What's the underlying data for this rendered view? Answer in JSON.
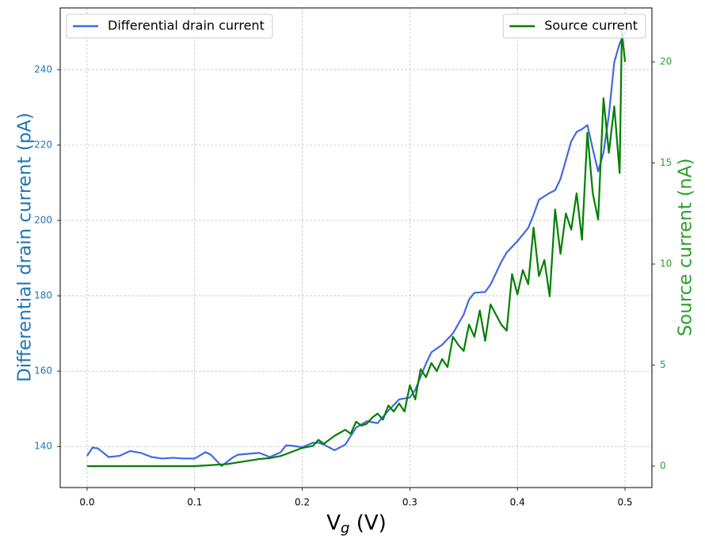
{
  "chart_data": {
    "type": "line",
    "xlabel": {
      "main": "V",
      "sub": "g",
      "rest": " (V)"
    },
    "ylabel": "Differential drain current (pA)",
    "y2label": "Source current (nA)",
    "xlim": [
      -0.025,
      0.525
    ],
    "ylim": [
      129.1,
      256.4
    ],
    "y2lim": [
      -1.06,
      22.67
    ],
    "xticks": [
      {
        "value": 0,
        "label": "0.0"
      },
      0.1,
      0.2,
      0.3,
      0.4,
      0.5
    ],
    "yticks": [
      140,
      160,
      180,
      200,
      220,
      240
    ],
    "y2ticks": [
      0,
      5,
      10,
      15,
      20
    ],
    "grid": true,
    "series": [
      {
        "name": "Differential drain current",
        "color": "#4169e1",
        "axis": "y",
        "legend": "upper left",
        "x": [
          0,
          0.005,
          0.01,
          0.02,
          0.03,
          0.04,
          0.05,
          0.06,
          0.07,
          0.08,
          0.09,
          0.1,
          0.11,
          0.115,
          0.125,
          0.135,
          0.14,
          0.16,
          0.17,
          0.18,
          0.185,
          0.19,
          0.2,
          0.21,
          0.215,
          0.22,
          0.23,
          0.24,
          0.25,
          0.26,
          0.27,
          0.28,
          0.29,
          0.3,
          0.305,
          0.31,
          0.315,
          0.32,
          0.33,
          0.34,
          0.35,
          0.355,
          0.36,
          0.37,
          0.375,
          0.385,
          0.39,
          0.4,
          0.41,
          0.415,
          0.42,
          0.43,
          0.435,
          0.44,
          0.445,
          0.45,
          0.455,
          0.46,
          0.465,
          0.47,
          0.475,
          0.48,
          0.485,
          0.49,
          0.495,
          0.5
        ],
        "values": [
          137.5,
          139.7,
          139.5,
          137.2,
          137.5,
          138.8,
          138.3,
          137.2,
          136.8,
          137,
          136.8,
          136.8,
          138.5,
          137.8,
          134.8,
          137,
          137.8,
          138.3,
          137.2,
          138.5,
          140.3,
          140.2,
          139.8,
          141,
          141,
          140.5,
          139,
          140.5,
          145,
          146.7,
          146.2,
          149.5,
          152.5,
          153,
          155,
          158.5,
          162,
          165,
          167,
          170,
          175,
          179,
          180.8,
          181,
          183,
          189,
          191.5,
          194.5,
          198,
          201.5,
          205.5,
          207.3,
          208,
          211,
          216,
          221,
          223.5,
          224.2,
          225.3,
          219,
          213,
          218,
          228,
          242,
          247,
          250
        ]
      },
      {
        "name": "Source current",
        "color": "#008000",
        "axis": "y2",
        "legend": "upper right",
        "x": [
          0,
          0.1,
          0.13,
          0.16,
          0.17,
          0.18,
          0.19,
          0.2,
          0.21,
          0.215,
          0.22,
          0.23,
          0.24,
          0.245,
          0.25,
          0.255,
          0.26,
          0.265,
          0.27,
          0.275,
          0.28,
          0.285,
          0.29,
          0.295,
          0.3,
          0.305,
          0.31,
          0.315,
          0.32,
          0.325,
          0.33,
          0.335,
          0.34,
          0.345,
          0.35,
          0.355,
          0.36,
          0.365,
          0.37,
          0.375,
          0.38,
          0.385,
          0.39,
          0.395,
          0.4,
          0.405,
          0.41,
          0.415,
          0.42,
          0.425,
          0.43,
          0.435,
          0.44,
          0.445,
          0.45,
          0.455,
          0.46,
          0.465,
          0.47,
          0.475,
          0.48,
          0.485,
          0.49,
          0.495,
          0.497,
          0.5
        ],
        "values": [
          0,
          0,
          0.1,
          0.35,
          0.4,
          0.5,
          0.7,
          0.9,
          1.0,
          1.3,
          1.1,
          1.5,
          1.8,
          1.6,
          2.2,
          2.0,
          2.1,
          2.4,
          2.6,
          2.3,
          3.0,
          2.7,
          3.1,
          2.7,
          4.0,
          3.3,
          4.8,
          4.4,
          5.1,
          4.7,
          5.3,
          4.9,
          6.4,
          6.0,
          5.7,
          7.0,
          6.4,
          7.7,
          6.2,
          8.0,
          7.5,
          7.0,
          6.7,
          9.5,
          8.5,
          9.7,
          9.0,
          11.8,
          9.4,
          10.2,
          8.4,
          12.7,
          10.5,
          12.5,
          11.7,
          13.5,
          11.2,
          16.5,
          13.5,
          12.2,
          18.2,
          15.5,
          17.8,
          14.5,
          21.5,
          20.0
        ]
      }
    ]
  }
}
